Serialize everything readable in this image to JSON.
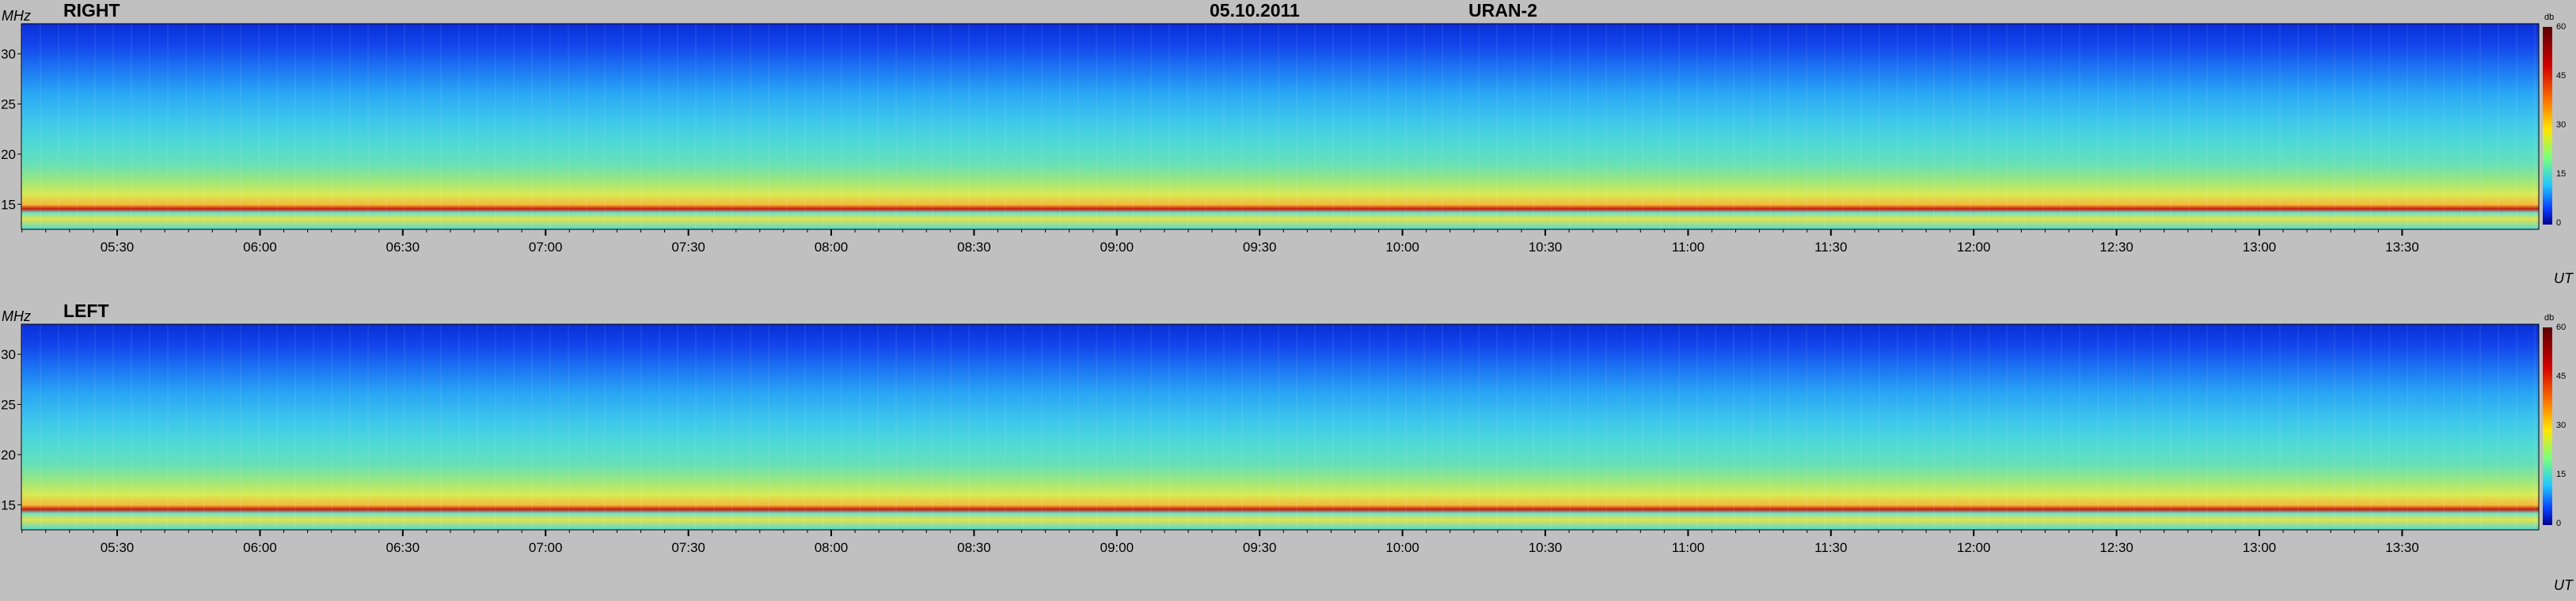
{
  "header": {
    "date": "05.10.2011",
    "instrument": "URAN-2"
  },
  "panels": [
    {
      "label": "RIGHT",
      "y_unit": "MHz",
      "x_unit": "UT"
    },
    {
      "label": "LEFT",
      "y_unit": "MHz",
      "x_unit": "UT"
    }
  ],
  "colorbar": {
    "unit": "db",
    "ticks": [
      "60",
      "45",
      "30",
      "15",
      "0"
    ],
    "range": [
      0,
      60
    ]
  },
  "chart_data": [
    {
      "type": "heatmap",
      "title": "RIGHT",
      "ylabel": "MHz",
      "xlabel": "UT",
      "y_ticks": [
        30,
        25,
        20,
        15
      ],
      "x_ticks": [
        "05:30",
        "06:00",
        "06:30",
        "07:00",
        "07:30",
        "08:00",
        "08:30",
        "09:00",
        "09:30",
        "10:00",
        "10:30",
        "11:00",
        "11:30",
        "12:00",
        "12:30",
        "13:00",
        "13:30"
      ],
      "colorbar_range": [
        0,
        60
      ],
      "colorbar_unit": "db"
    },
    {
      "type": "heatmap",
      "title": "LEFT",
      "ylabel": "MHz",
      "xlabel": "UT",
      "y_ticks": [
        30,
        25,
        20,
        15
      ],
      "x_ticks": [
        "05:30",
        "06:00",
        "06:30",
        "07:00",
        "07:30",
        "08:00",
        "08:30",
        "09:00",
        "09:30",
        "10:00",
        "10:30",
        "11:00",
        "11:30",
        "12:00",
        "12:30",
        "13:00",
        "13:30"
      ],
      "colorbar_range": [
        0,
        60
      ],
      "colorbar_unit": "db"
    }
  ]
}
